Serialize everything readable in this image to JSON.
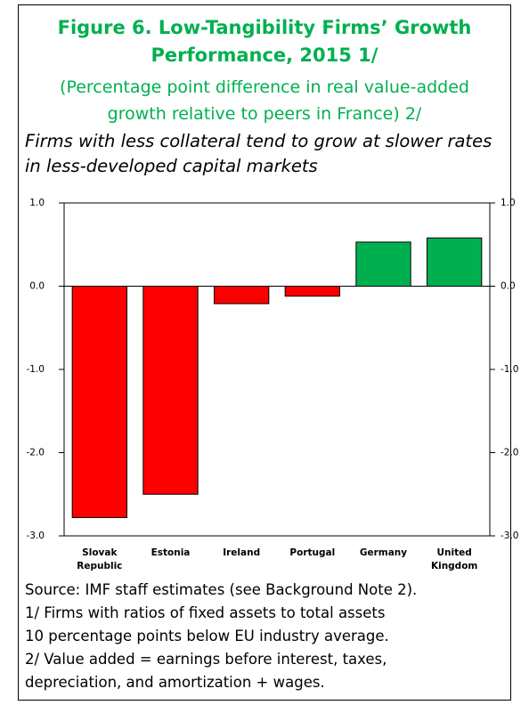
{
  "chart_data": {
    "type": "bar",
    "title": [
      "Figure 6. Low-Tangibility Firms’ Growth",
      "Performance, 2015 1/"
    ],
    "subtitle": [
      "(Percentage point difference in real value-added",
      "growth relative to peers in France) 2/"
    ],
    "annotation": [
      "Firms with less collateral tend to grow at slower rates",
      "in less-developed capital markets"
    ],
    "categories": [
      "Slovak Republic",
      "Estonia",
      "Ireland",
      "Portugal",
      "Germany",
      "United Kingdom"
    ],
    "values": [
      -2.78,
      -2.5,
      -0.21,
      -0.12,
      0.53,
      0.58
    ],
    "colors": [
      "#ff0000",
      "#ff0000",
      "#ff0000",
      "#ff0000",
      "#00b050",
      "#00b050"
    ],
    "ylim": [
      -3,
      1
    ],
    "yticks": [
      {
        "value": -3,
        "label": "-3.0"
      },
      {
        "value": -2,
        "label": "-2.0"
      },
      {
        "value": -1,
        "label": "-1.0"
      },
      {
        "value": 0,
        "label": "0.0"
      },
      {
        "value": 1,
        "label": "1.0"
      }
    ],
    "y2lim": [
      -3,
      1
    ],
    "y2ticks": [
      {
        "value": -3,
        "label": "-3.0"
      },
      {
        "value": -2,
        "label": "-2.0"
      },
      {
        "value": -1,
        "label": "-1.0"
      },
      {
        "value": 0,
        "label": "0.0"
      },
      {
        "value": 1,
        "label": "1.0"
      }
    ],
    "grid": false,
    "notes": [
      "Source: IMF staff estimates (see Background Note 2).",
      "1/ Firms with ratios of fixed assets to total assets",
      "10 percentage points below EU industry average.",
      "2/ Value added = earnings before interest, taxes,",
      "depreciation, and amortization + wages."
    ]
  }
}
